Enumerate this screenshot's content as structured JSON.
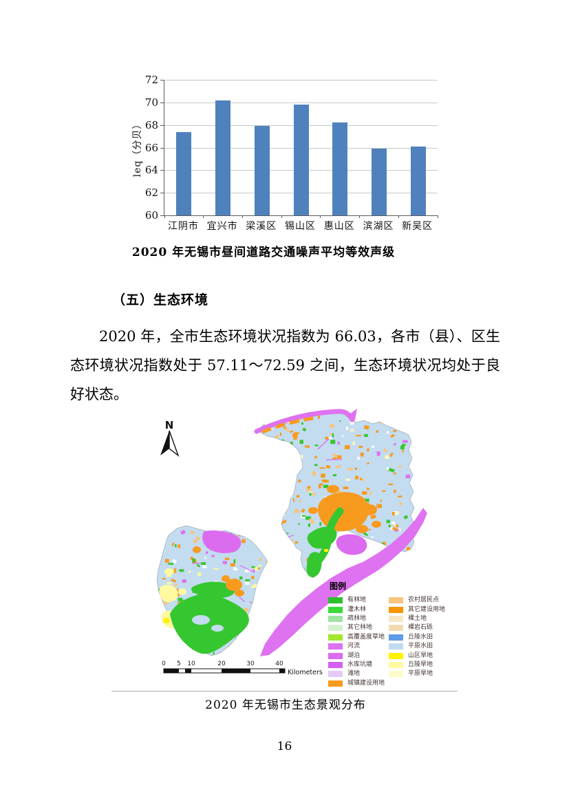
{
  "page_number": "16",
  "chart_data": {
    "type": "bar",
    "title": "2020 年无锡市昼间道路交通噪声平均等效声级",
    "ylabel": "leq（分贝）",
    "xlabel": "",
    "categories": [
      "江阴市",
      "宜兴市",
      "梁溪区",
      "锡山区",
      "惠山区",
      "滨湖区",
      "新吴区"
    ],
    "values": [
      67.4,
      70.2,
      67.9,
      69.8,
      68.2,
      65.9,
      66.1
    ],
    "ylim": [
      60,
      72
    ],
    "ytick_step": 2,
    "bar_color": "#4F81BD",
    "grid": true,
    "legend_position": "none"
  },
  "section": {
    "heading": "（五）生态环境",
    "paragraph": "2020 年，全市生态环境状况指数为 66.03，各市（县）、区生态环境状况指数处于 57.11～72.59 之间，生态环境状况均处于良好状态。"
  },
  "map_figure": {
    "caption": "2020 年无锡市生态景观分布",
    "north_arrow_label": "N",
    "base_color": "#C3DCF0",
    "water_color": "#DB6CEF",
    "legend": {
      "title": "图例",
      "columns": [
        [
          {
            "label": "有林地",
            "color": "#2FBE2F"
          },
          {
            "label": "灌木林",
            "color": "#38DB38"
          },
          {
            "label": "疏林地",
            "color": "#9FE3A0"
          },
          {
            "label": "其它林地",
            "color": "#D4F2D0"
          },
          {
            "label": "高覆盖度草地",
            "color": "#A5E62E"
          },
          {
            "label": "河流",
            "color": "#DE72F0"
          },
          {
            "label": "湖泊",
            "color": "#DB6CEF"
          },
          {
            "label": "水库坑塘",
            "color": "#D260F0"
          },
          {
            "label": "滩地",
            "color": "#E4C9F7"
          },
          {
            "label": "城镇建设用地",
            "color": "#F79A1E"
          }
        ],
        [
          {
            "label": "农村居民点",
            "color": "#F6C57E"
          },
          {
            "label": "其它建设用地",
            "color": "#F69500"
          },
          {
            "label": "裸土地",
            "color": "#F7E7C6"
          },
          {
            "label": "裸岩石砾",
            "color": "#F1DBB2"
          },
          {
            "label": "丘陵水田",
            "color": "#5E9BE8"
          },
          {
            "label": "平原水田",
            "color": "#BFDCF2"
          },
          {
            "label": "山区旱地",
            "color": "#FFF200"
          },
          {
            "label": "丘陵旱地",
            "color": "#FFF9A0"
          },
          {
            "label": "平原旱地",
            "color": "#FDFACB"
          }
        ]
      ]
    },
    "scalebar": {
      "ticks": [
        "0",
        "5",
        "10",
        "20",
        "30",
        "40"
      ],
      "unit": "Kilometers"
    }
  }
}
